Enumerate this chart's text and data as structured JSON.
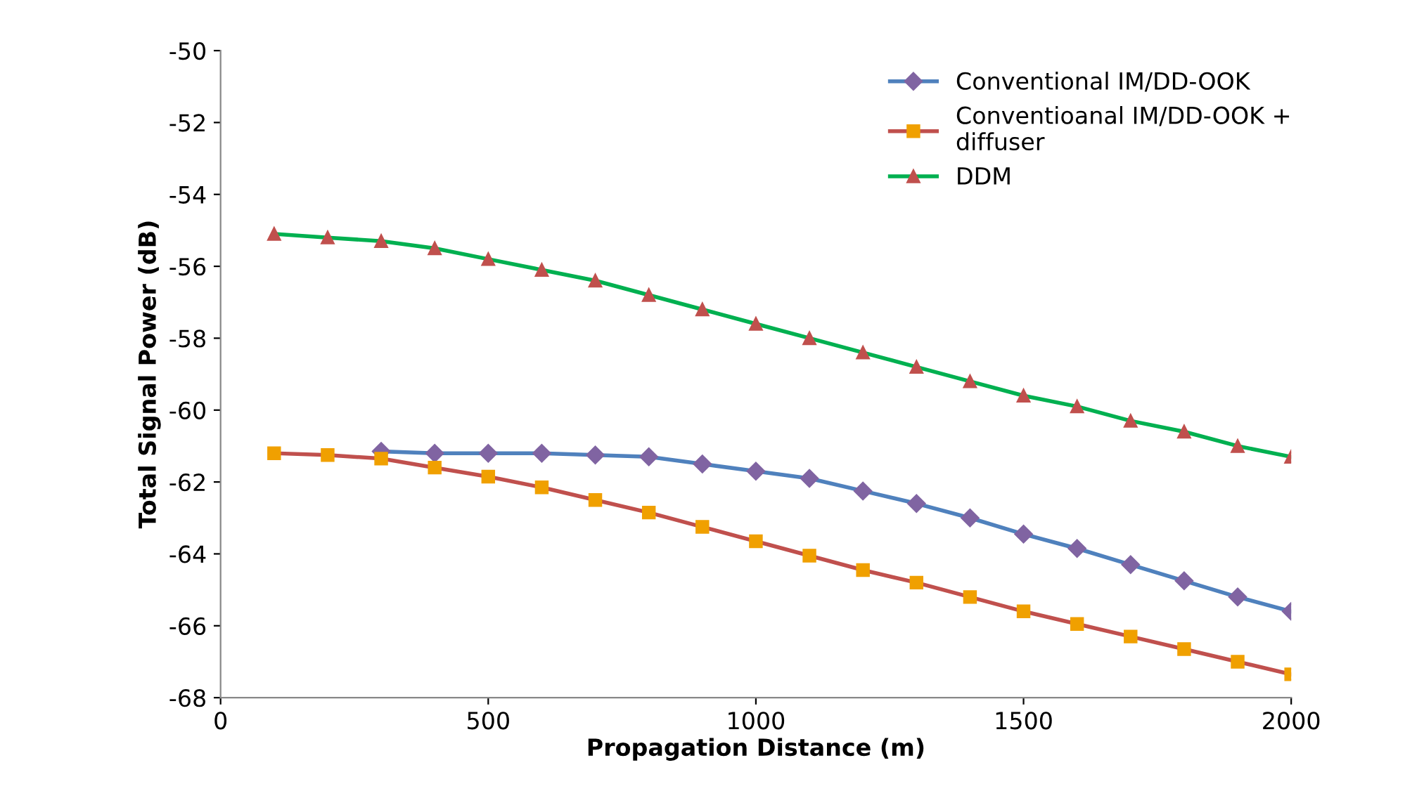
{
  "chart_data": {
    "type": "line",
    "xlabel": "Propagation Distance (m)",
    "ylabel": "Total Signal Power (dB)",
    "x": [
      100,
      200,
      300,
      400,
      500,
      600,
      700,
      800,
      900,
      1000,
      1100,
      1200,
      1300,
      1400,
      1500,
      1600,
      1700,
      1800,
      1900,
      2000
    ],
    "series": [
      {
        "name": "Conventional IM/DD-OOK",
        "color": "#4f81bd",
        "marker": "diamond",
        "values": [
          null,
          null,
          -61.15,
          -61.2,
          -61.2,
          -61.2,
          -61.25,
          -61.3,
          -61.5,
          -61.7,
          -61.9,
          -62.25,
          -62.6,
          -63.0,
          -63.45,
          -63.85,
          -64.3,
          -64.75,
          -65.2,
          -65.6
        ]
      },
      {
        "name": "Conventioanal IM/DD-OOK + diffuser",
        "color": "#c0504d",
        "marker": "square",
        "values": [
          -61.2,
          -61.25,
          -61.35,
          -61.6,
          -61.85,
          -62.15,
          -62.5,
          -62.85,
          -63.25,
          -63.65,
          -64.05,
          -64.45,
          -64.8,
          -65.2,
          -65.6,
          -65.95,
          -66.3,
          -66.65,
          -67.0,
          -67.35
        ]
      },
      {
        "name": "DDM",
        "color": "#00b050",
        "marker": "triangle",
        "values": [
          -55.1,
          -55.2,
          -55.3,
          -55.5,
          -55.8,
          -56.1,
          -56.4,
          -56.8,
          -57.2,
          -57.6,
          -58.0,
          -58.4,
          -58.8,
          -59.2,
          -59.6,
          -59.9,
          -60.3,
          -60.6,
          -61.0,
          -61.3
        ]
      }
    ],
    "xlim": [
      0,
      2000
    ],
    "xticks": [
      0,
      500,
      1000,
      1500,
      2000
    ],
    "ylim": [
      -68,
      -50
    ],
    "yticks": [
      -68,
      -66,
      -64,
      -62,
      -60,
      -58,
      -56,
      -54,
      -52,
      -50
    ],
    "grid": false,
    "legend": "top right"
  }
}
